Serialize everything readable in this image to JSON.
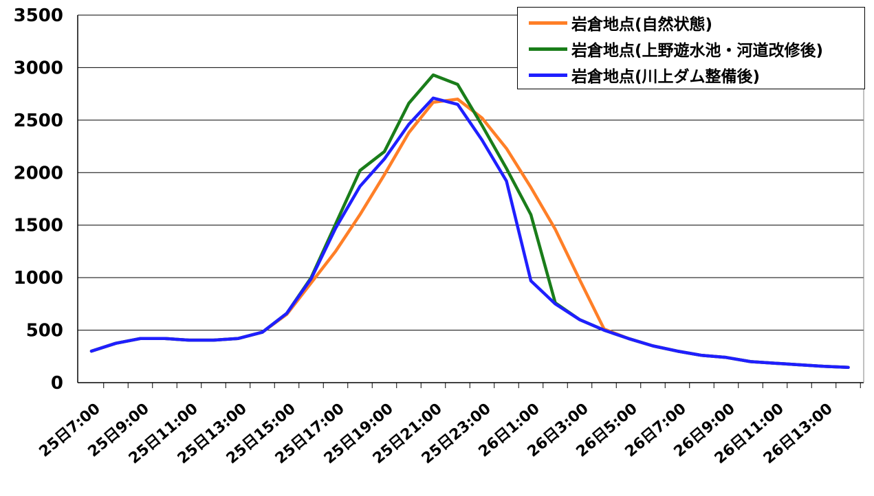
{
  "chart_data": {
    "type": "line",
    "title": "",
    "xlabel": "",
    "ylabel": "",
    "ylim": [
      0,
      3500
    ],
    "yticks": [
      0,
      500,
      1000,
      1500,
      2000,
      2500,
      3000,
      3500
    ],
    "grid": "horizontal",
    "legend_position": "top-right",
    "x": [
      "25日7:00",
      "25日8:00",
      "25日9:00",
      "25日10:00",
      "25日11:00",
      "25日12:00",
      "25日13:00",
      "25日14:00",
      "25日15:00",
      "25日16:00",
      "25日17:00",
      "25日18:00",
      "25日19:00",
      "25日20:00",
      "25日21:00",
      "25日22:00",
      "25日23:00",
      "26日0:00",
      "26日1:00",
      "26日2:00",
      "26日3:00",
      "26日4:00",
      "26日5:00",
      "26日6:00",
      "26日7:00",
      "26日8:00",
      "26日9:00",
      "26日10:00",
      "26日11:00",
      "26日12:00",
      "26日13:00",
      "26日14:00"
    ],
    "xtick_labels": [
      "25日7:00",
      "25日9:00",
      "25日11:00",
      "25日13:00",
      "25日15:00",
      "25日17:00",
      "25日19:00",
      "25日21:00",
      "25日23:00",
      "26日1:00",
      "26日3:00",
      "26日5:00",
      "26日7:00",
      "26日9:00",
      "26日11:00",
      "26日13:00"
    ],
    "series": [
      {
        "name": "岩倉地点(自然状態)",
        "color": "#ff7f27",
        "values": [
          300,
          375,
          420,
          420,
          405,
          405,
          420,
          480,
          650,
          950,
          1250,
          1600,
          1980,
          2380,
          2670,
          2700,
          2520,
          2230,
          1860,
          1460,
          980,
          510,
          420,
          350,
          300,
          260,
          240,
          200,
          185,
          170,
          155,
          145
        ]
      },
      {
        "name": "岩倉地点(上野遊水池・河道改修後)",
        "color": "#1a7d1a",
        "values": [
          300,
          375,
          420,
          420,
          405,
          405,
          420,
          480,
          660,
          1000,
          1510,
          2020,
          2200,
          2660,
          2930,
          2840,
          2450,
          2040,
          1600,
          760,
          600,
          500,
          420,
          350,
          300,
          260,
          240,
          200,
          185,
          170,
          155,
          145
        ]
      },
      {
        "name": "岩倉地点(川上ダム整備後)",
        "color": "#1f1fff",
        "values": [
          300,
          375,
          420,
          420,
          405,
          405,
          420,
          480,
          660,
          990,
          1470,
          1870,
          2130,
          2460,
          2710,
          2650,
          2310,
          1920,
          970,
          750,
          600,
          500,
          420,
          350,
          300,
          260,
          240,
          200,
          185,
          170,
          155,
          145
        ]
      }
    ]
  }
}
